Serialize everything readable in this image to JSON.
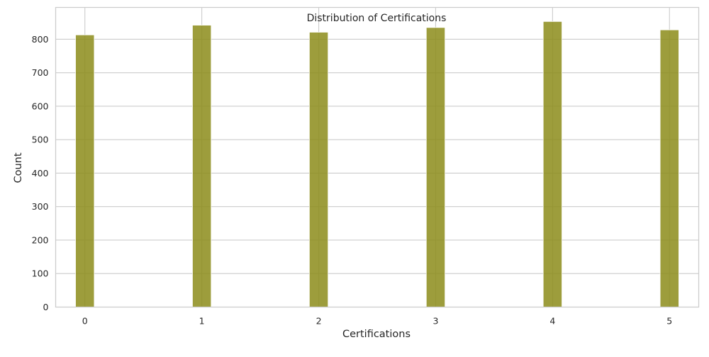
{
  "chart_data": {
    "type": "bar",
    "title": "Distribution of Certifications",
    "xlabel": "Certifications",
    "ylabel": "Count",
    "categories": [
      0,
      1,
      2,
      3,
      4,
      5
    ],
    "values": [
      813,
      842,
      821,
      835,
      853,
      828
    ],
    "xlim": [
      -0.25,
      5.25
    ],
    "ylim": [
      0,
      895
    ],
    "yticks": [
      0,
      100,
      200,
      300,
      400,
      500,
      600,
      700,
      800
    ],
    "xticks": [
      0,
      1,
      2,
      3,
      4,
      5
    ],
    "bar_width": 0.16,
    "grid": true,
    "bar_color": "#8c8c1a",
    "bar_opacity": 0.85,
    "grid_color": "#cccccc",
    "background": "#ffffff"
  }
}
